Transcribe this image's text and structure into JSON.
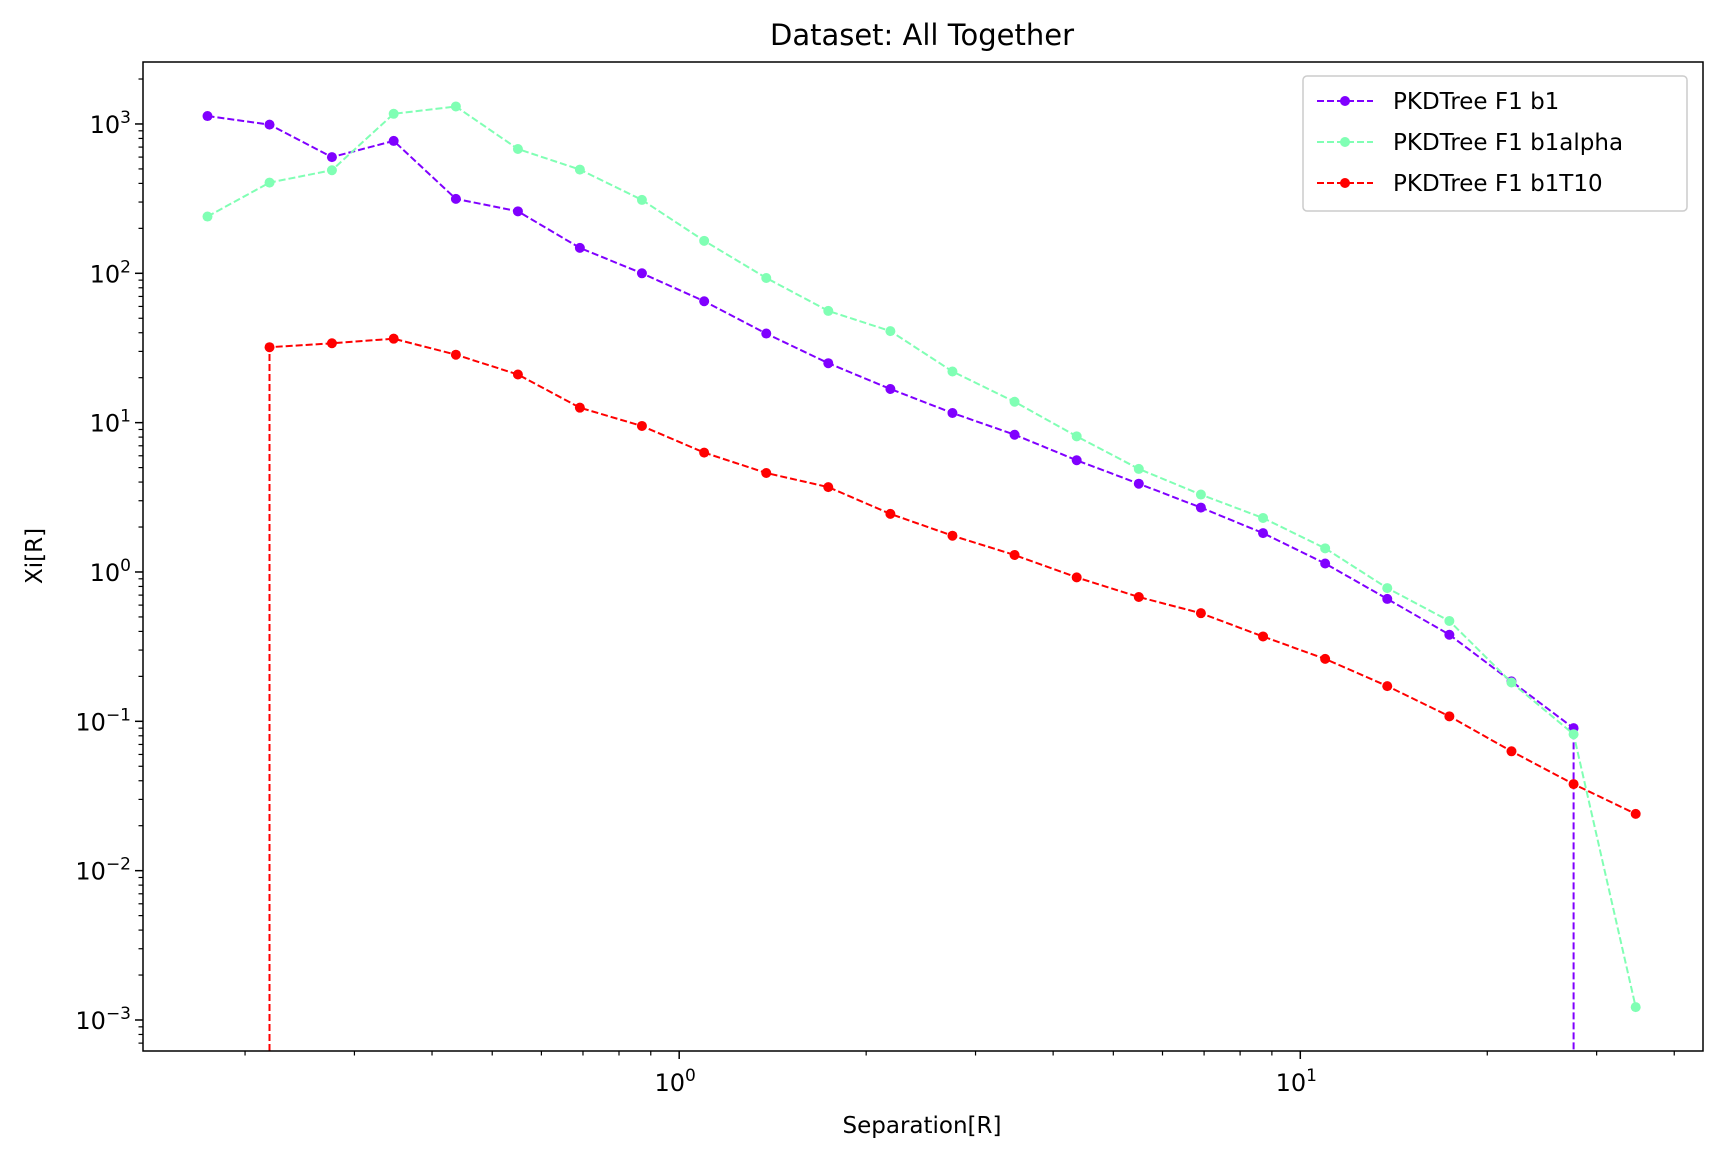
{
  "chart_data": {
    "type": "line",
    "title": "Dataset: All Together",
    "xlabel": "Separation[R]",
    "ylabel": "Xi[R]",
    "x_scale": "log",
    "y_scale": "log",
    "xlim": [
      0.137,
      44.5
    ],
    "ylim": [
      0.00062,
      2600
    ],
    "x_major_ticks": [
      {
        "value": 1,
        "base": "10",
        "exp": "0"
      },
      {
        "value": 10,
        "base": "10",
        "exp": "1"
      }
    ],
    "y_major_ticks": [
      {
        "value": 0.001,
        "base": "10",
        "exp": "−3"
      },
      {
        "value": 0.01,
        "base": "10",
        "exp": "−2"
      },
      {
        "value": 0.1,
        "base": "10",
        "exp": "−1"
      },
      {
        "value": 1,
        "base": "10",
        "exp": "0"
      },
      {
        "value": 10,
        "base": "10",
        "exp": "1"
      },
      {
        "value": 100,
        "base": "10",
        "exp": "2"
      },
      {
        "value": 1000,
        "base": "10",
        "exp": "3"
      }
    ],
    "grid": false,
    "legend_position": "top-right",
    "x": [
      0.174,
      0.219,
      0.276,
      0.347,
      0.437,
      0.55,
      0.692,
      0.871,
      1.097,
      1.381,
      1.738,
      2.188,
      2.754,
      3.467,
      4.365,
      5.495,
      6.918,
      8.71,
      10.965,
      13.804,
      17.378,
      21.878,
      27.542,
      34.674
    ],
    "series": [
      {
        "name": "PKDTree F1 b1",
        "color": "#8000ff",
        "values": [
          1130,
          990,
          600,
          770,
          315,
          260,
          148,
          100,
          65,
          39.5,
          25,
          16.8,
          11.6,
          8.3,
          5.6,
          3.9,
          2.7,
          1.82,
          1.14,
          0.66,
          0.38,
          0.185,
          0.09,
          null
        ],
        "drop_to_axis_at_x": 27.542
      },
      {
        "name": "PKDTree F1 b1alpha",
        "color": "#80ffb4",
        "values": [
          240,
          405,
          490,
          1170,
          1310,
          680,
          495,
          310,
          165,
          93,
          56,
          41,
          22,
          13.8,
          8.1,
          4.9,
          3.3,
          2.3,
          1.44,
          0.78,
          0.47,
          0.182,
          0.082,
          0.00122
        ]
      },
      {
        "name": "PKDTree F1 b1T10",
        "color": "#ff0000",
        "values": [
          null,
          32,
          34,
          36.5,
          28.5,
          21,
          12.6,
          9.5,
          6.3,
          4.6,
          3.7,
          2.45,
          1.75,
          1.3,
          0.92,
          0.68,
          0.53,
          0.37,
          0.262,
          0.172,
          0.108,
          0.063,
          0.038,
          0.024
        ],
        "drop_to_axis_at_x": 0.219
      }
    ]
  }
}
